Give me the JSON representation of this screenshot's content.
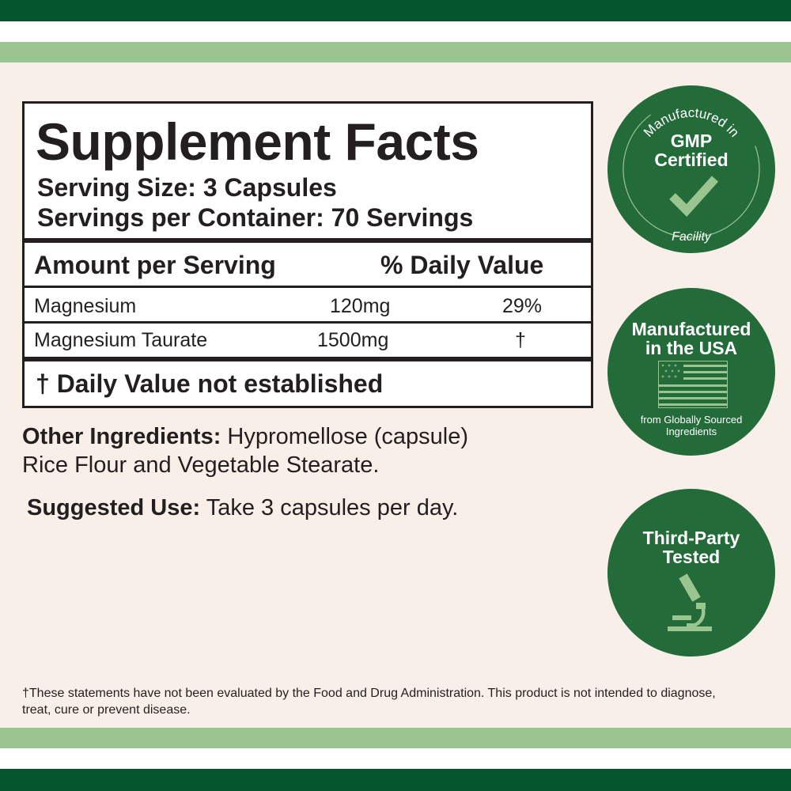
{
  "colors": {
    "dark_green": "#04552e",
    "light_green": "#9ac590",
    "cream": "#f8efe8",
    "badge_green": "#246b3a",
    "badge_accent": "#9ac590"
  },
  "facts": {
    "title": "Supplement Facts",
    "serving_size": "Serving Size: 3 Capsules",
    "servings_per_container": "Servings per Container: 70 Servings",
    "header_amount": "Amount per Serving",
    "header_dv": "% Daily Value",
    "rows": [
      {
        "name": "Magnesium",
        "amount": "120mg",
        "dv": "29%"
      },
      {
        "name": "Magnesium Taurate",
        "amount": "1500mg",
        "dv": "†"
      }
    ],
    "footnote": "† Daily Value not established"
  },
  "other_ingredients": {
    "label": "Other Ingredients:",
    "text": " Hypromellose (capsule)",
    "text2": "Rice Flour and Vegetable Stearate."
  },
  "suggested_use": {
    "label": "Suggested Use:",
    "text": " Take 3 capsules per day."
  },
  "badges": [
    {
      "top_arc": "Manufactured in",
      "title1": "GMP",
      "title2": "Certified",
      "bottom_arc": "Facility",
      "icon": "checkmark-icon"
    },
    {
      "title1": "Manufactured",
      "title2": "in the USA",
      "sub1": "from Globally Sourced",
      "sub2": "Ingredients",
      "icon": "us-flag-icon"
    },
    {
      "title1": "Third-Party",
      "title2": "Tested",
      "icon": "microscope-icon"
    }
  ],
  "disclaimer": "†These statements have not been evaluated by the Food and Drug Administration. This product is not intended to diagnose, treat, cure or prevent disease."
}
